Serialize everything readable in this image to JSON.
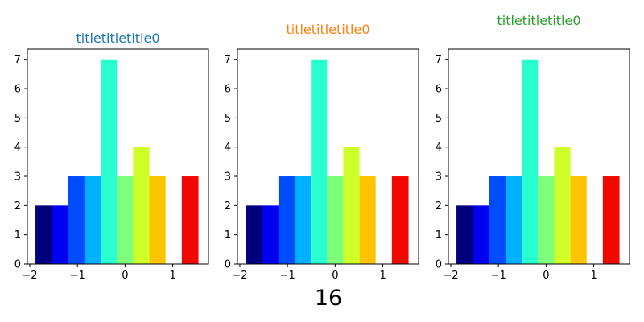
{
  "figure": {
    "xlabel": "16"
  },
  "chart_data": [
    {
      "type": "bar",
      "title": "titletitletitle0",
      "title_color": "#1f77b4",
      "xlim": [
        -2.05,
        1.75
      ],
      "ylim": [
        0,
        7.35
      ],
      "x_ticks": [
        -2,
        -1,
        0,
        1
      ],
      "x_tick_labels": [
        "−2",
        "−1",
        "0",
        "1"
      ],
      "y_ticks": [
        0,
        1,
        2,
        3,
        4,
        5,
        6,
        7
      ],
      "y_tick_labels": [
        "0",
        "1",
        "2",
        "3",
        "4",
        "5",
        "6",
        "7"
      ],
      "bin_edges": [
        -1.88,
        -1.54,
        -1.19,
        -0.85,
        -0.51,
        -0.17,
        0.17,
        0.51,
        0.85,
        1.19,
        1.54
      ],
      "values": [
        2,
        2,
        3,
        3,
        7,
        3,
        4,
        3,
        0,
        3
      ],
      "bar_colors": [
        "#00007f",
        "#0000f1",
        "#004dff",
        "#00b1ff",
        "#29ffce",
        "#7dff7a",
        "#ceff29",
        "#ffc400",
        "#ff6800",
        "#f10800"
      ],
      "grid": false
    },
    {
      "type": "bar",
      "title": "titletitletitle0",
      "title_color": "#ff7f0e",
      "xlim": [
        -2.05,
        1.75
      ],
      "ylim": [
        0,
        7.35
      ],
      "x_ticks": [
        -2,
        -1,
        0,
        1
      ],
      "x_tick_labels": [
        "−2",
        "−1",
        "0",
        "1"
      ],
      "y_ticks": [
        0,
        1,
        2,
        3,
        4,
        5,
        6,
        7
      ],
      "y_tick_labels": [
        "0",
        "1",
        "2",
        "3",
        "4",
        "5",
        "6",
        "7"
      ],
      "bin_edges": [
        -1.88,
        -1.54,
        -1.19,
        -0.85,
        -0.51,
        -0.17,
        0.17,
        0.51,
        0.85,
        1.19,
        1.54
      ],
      "values": [
        2,
        2,
        3,
        3,
        7,
        3,
        4,
        3,
        0,
        3
      ],
      "bar_colors": [
        "#00007f",
        "#0000f1",
        "#004dff",
        "#00b1ff",
        "#29ffce",
        "#7dff7a",
        "#ceff29",
        "#ffc400",
        "#ff6800",
        "#f10800"
      ],
      "grid": false
    },
    {
      "type": "bar",
      "title": "titletitletitle0",
      "title_color": "#2ca02c",
      "xlim": [
        -2.05,
        1.75
      ],
      "ylim": [
        0,
        7.35
      ],
      "x_ticks": [
        -2,
        -1,
        0,
        1
      ],
      "x_tick_labels": [
        "−2",
        "−1",
        "0",
        "1"
      ],
      "y_ticks": [
        0,
        1,
        2,
        3,
        4,
        5,
        6,
        7
      ],
      "y_tick_labels": [
        "0",
        "1",
        "2",
        "3",
        "4",
        "5",
        "6",
        "7"
      ],
      "bin_edges": [
        -1.88,
        -1.54,
        -1.19,
        -0.85,
        -0.51,
        -0.17,
        0.17,
        0.51,
        0.85,
        1.19,
        1.54
      ],
      "values": [
        2,
        2,
        3,
        3,
        7,
        3,
        4,
        3,
        0,
        3
      ],
      "bar_colors": [
        "#00007f",
        "#0000f1",
        "#004dff",
        "#00b1ff",
        "#29ffce",
        "#7dff7a",
        "#ceff29",
        "#ffc400",
        "#ff6800",
        "#f10800"
      ],
      "grid": false
    }
  ]
}
